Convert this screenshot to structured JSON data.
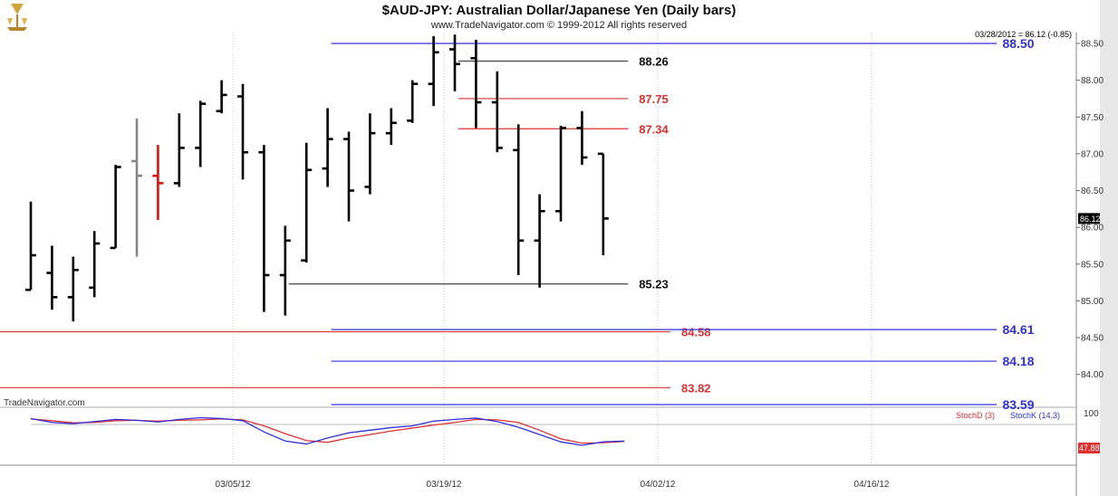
{
  "header": {
    "title": "$AUD-JPY:  Australian Dollar/Japanese Yen  (Daily bars)",
    "subtitle": "www.TradeNavigator.com © 1999-2012 All rights reserved",
    "last_info": "03/28/2012 = 86.12 (-0.85)",
    "brand": "TradeNavigator.com"
  },
  "chart_data": [
    {
      "type": "ohlc",
      "ylim": [
        83.55,
        88.62
      ],
      "x_tick_labels": [
        "03/05/12",
        "03/19/12",
        "04/02/12",
        "04/16/12"
      ],
      "y_tick_labels": [
        "88.50",
        "88.00",
        "87.50",
        "87.00",
        "86.50",
        "86.00",
        "85.50",
        "85.00",
        "84.50",
        "84.00"
      ],
      "y_tick_values": [
        88.5,
        88.0,
        87.5,
        87.0,
        86.5,
        86.0,
        85.5,
        85.0,
        84.5,
        84.0
      ],
      "current_price_label": "86.12",
      "current_price": 86.12,
      "bars": [
        {
          "o": 85.15,
          "h": 86.35,
          "l": 85.15,
          "c": 85.62,
          "color": "#000000"
        },
        {
          "o": 85.38,
          "h": 85.75,
          "l": 84.88,
          "c": 85.05,
          "color": "#000000"
        },
        {
          "o": 85.05,
          "h": 85.6,
          "l": 84.72,
          "c": 85.42,
          "color": "#000000"
        },
        {
          "o": 85.18,
          "h": 85.95,
          "l": 85.05,
          "c": 85.78,
          "color": "#000000"
        },
        {
          "o": 85.72,
          "h": 86.85,
          "l": 85.72,
          "c": 86.82,
          "color": "#000000"
        },
        {
          "o": 86.9,
          "h": 87.48,
          "l": 85.6,
          "c": 86.7,
          "color": "#888888"
        },
        {
          "o": 86.7,
          "h": 87.12,
          "l": 86.1,
          "c": 86.6,
          "color": "#e01010"
        },
        {
          "o": 86.6,
          "h": 87.55,
          "l": 86.55,
          "c": 87.08,
          "color": "#000000"
        },
        {
          "o": 87.08,
          "h": 87.72,
          "l": 86.82,
          "c": 87.68,
          "color": "#000000"
        },
        {
          "o": 87.58,
          "h": 88.0,
          "l": 87.55,
          "c": 87.8,
          "color": "#000000"
        },
        {
          "o": 87.78,
          "h": 87.95,
          "l": 86.65,
          "c": 87.02,
          "color": "#000000"
        },
        {
          "o": 87.02,
          "h": 87.12,
          "l": 84.85,
          "c": 85.35,
          "color": "#000000"
        },
        {
          "o": 85.35,
          "h": 86.02,
          "l": 84.8,
          "c": 85.82,
          "color": "#000000"
        },
        {
          "o": 85.55,
          "h": 87.15,
          "l": 85.52,
          "c": 86.78,
          "color": "#000000"
        },
        {
          "o": 86.8,
          "h": 87.62,
          "l": 86.55,
          "c": 87.2,
          "color": "#000000"
        },
        {
          "o": 87.2,
          "h": 87.3,
          "l": 86.08,
          "c": 86.5,
          "color": "#000000"
        },
        {
          "o": 86.55,
          "h": 87.55,
          "l": 86.45,
          "c": 87.28,
          "color": "#000000"
        },
        {
          "o": 87.28,
          "h": 87.62,
          "l": 87.12,
          "c": 87.42,
          "color": "#000000"
        },
        {
          "o": 87.45,
          "h": 88.0,
          "l": 87.42,
          "c": 87.95,
          "color": "#000000"
        },
        {
          "o": 87.95,
          "h": 88.6,
          "l": 87.65,
          "c": 88.38,
          "color": "#000000"
        },
        {
          "o": 88.42,
          "h": 88.62,
          "l": 87.85,
          "c": 88.22,
          "color": "#000000"
        },
        {
          "o": 88.3,
          "h": 88.55,
          "l": 87.35,
          "c": 87.7,
          "color": "#000000"
        },
        {
          "o": 87.7,
          "h": 88.12,
          "l": 87.02,
          "c": 87.08,
          "color": "#000000"
        },
        {
          "o": 87.05,
          "h": 87.4,
          "l": 85.35,
          "c": 85.82,
          "color": "#000000"
        },
        {
          "o": 85.82,
          "h": 86.45,
          "l": 85.18,
          "c": 86.22,
          "color": "#000000"
        },
        {
          "o": 86.22,
          "h": 87.38,
          "l": 86.08,
          "c": 87.35,
          "color": "#000000"
        },
        {
          "o": 87.35,
          "h": 87.58,
          "l": 86.85,
          "c": 86.95,
          "color": "#000000"
        },
        {
          "o": 87.0,
          "h": 87.0,
          "l": 85.62,
          "c": 86.12,
          "color": "#000000"
        }
      ],
      "levels": [
        {
          "label": "88.50",
          "value": 88.5,
          "color": "#3030e0",
          "from": 14,
          "to": "end",
          "label_at": "right"
        },
        {
          "label": "88.26",
          "value": 88.26,
          "color": "#444444",
          "from": 20,
          "to": 28,
          "label_at": "mid"
        },
        {
          "label": "87.75",
          "value": 87.75,
          "color": "#e03030",
          "from": 20,
          "to": 28,
          "label_at": "mid"
        },
        {
          "label": "87.34",
          "value": 87.34,
          "color": "#e03030",
          "from": 20,
          "to": 28,
          "label_at": "mid"
        },
        {
          "label": "85.23",
          "value": 85.23,
          "color": "#444444",
          "from": 12,
          "to": 28,
          "label_at": "mid"
        },
        {
          "label": "84.58",
          "value": 84.58,
          "color": "#e03030",
          "from": "start",
          "to": 30,
          "label_at": "mid"
        },
        {
          "label": "84.61",
          "value": 84.61,
          "color": "#3030e0",
          "from": 14,
          "to": "end",
          "label_at": "right"
        },
        {
          "label": "84.18",
          "value": 84.18,
          "color": "#3030e0",
          "from": 14,
          "to": "end",
          "label_at": "right"
        },
        {
          "label": "83.82",
          "value": 83.82,
          "color": "#e03030",
          "from": "start",
          "to": 30,
          "label_at": "mid"
        },
        {
          "label": "83.59",
          "value": 83.59,
          "color": "#3030e0",
          "from": 14,
          "to": "end",
          "label_at": "right"
        }
      ]
    },
    {
      "type": "line",
      "ylim": [
        0,
        100
      ],
      "y_tick_labels": [
        "100"
      ],
      "value_label": "47.88",
      "series": [
        {
          "name": "StochD (3)",
          "color": "#e03030",
          "values": [
            96,
            92,
            87,
            88,
            92,
            93,
            91,
            93,
            94,
            96,
            94,
            80,
            62,
            46,
            42,
            52,
            60,
            68,
            75,
            82,
            88,
            95,
            94,
            88,
            70,
            50,
            40,
            41,
            44
          ]
        },
        {
          "name": "StochK (14,3)",
          "color": "#3030e0",
          "values": [
            97,
            88,
            85,
            90,
            95,
            93,
            89,
            95,
            99,
            97,
            92,
            66,
            45,
            38,
            52,
            64,
            70,
            76,
            80,
            91,
            95,
            98,
            90,
            77,
            60,
            43,
            35,
            43,
            45
          ]
        }
      ]
    }
  ]
}
